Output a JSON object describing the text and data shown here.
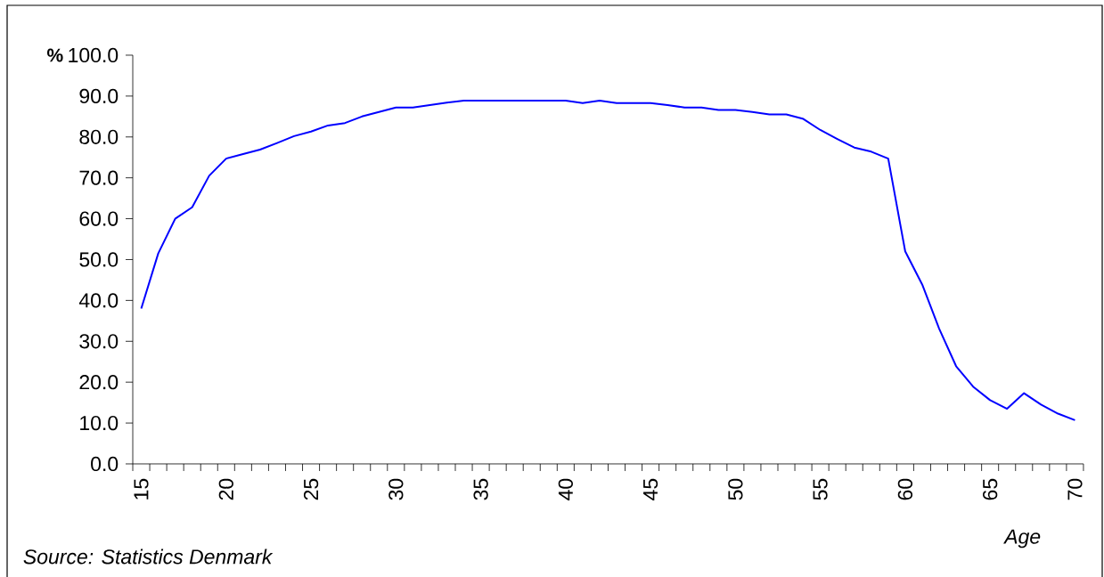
{
  "chart_data": {
    "type": "line",
    "ylabel": "%",
    "xlabel": "Age",
    "annotations": [
      "Source: Statistics Denmark"
    ],
    "categories": [
      "15",
      null,
      null,
      null,
      null,
      "20",
      null,
      null,
      null,
      null,
      "25",
      null,
      null,
      null,
      null,
      "30",
      null,
      null,
      null,
      null,
      "35",
      null,
      null,
      null,
      null,
      "40",
      null,
      null,
      null,
      null,
      "45",
      null,
      null,
      null,
      null,
      "50",
      null,
      null,
      null,
      null,
      "55",
      null,
      null,
      null,
      null,
      "60",
      null,
      null,
      null,
      null,
      "65",
      null,
      null,
      null,
      null,
      "70"
    ],
    "values": [
      38.0,
      51.5,
      60.0,
      62.8,
      70.5,
      74.7,
      75.8,
      76.9,
      78.5,
      80.2,
      81.3,
      82.8,
      83.4,
      85.0,
      86.1,
      87.2,
      87.2,
      87.8,
      88.4,
      88.9,
      88.9,
      88.9,
      88.9,
      88.9,
      88.9,
      88.9,
      88.3,
      88.9,
      88.3,
      88.3,
      88.3,
      87.8,
      87.2,
      87.2,
      86.6,
      86.6,
      86.1,
      85.5,
      85.5,
      84.4,
      81.7,
      79.5,
      77.4,
      76.4,
      74.7,
      52.0,
      43.9,
      33.1,
      23.9,
      18.9,
      15.6,
      13.5,
      17.3,
      14.5,
      12.3,
      10.7
    ],
    "color": "#0000ff",
    "ylim": [
      0,
      100
    ],
    "yticks": [
      {
        "value": 0,
        "label": "0.0"
      },
      {
        "value": 10,
        "label": "10.0"
      },
      {
        "value": 20,
        "label": "20.0"
      },
      {
        "value": 30,
        "label": "30.0"
      },
      {
        "value": 40,
        "label": "40.0"
      },
      {
        "value": 50,
        "label": "50.0"
      },
      {
        "value": 60,
        "label": "60.0"
      },
      {
        "value": 70,
        "label": "70.0"
      },
      {
        "value": 80,
        "label": "80.0"
      },
      {
        "value": 90,
        "label": "90.0"
      },
      {
        "value": 100,
        "label": "100.0"
      }
    ],
    "grid": false,
    "marker": "none",
    "line_style": "solid"
  }
}
